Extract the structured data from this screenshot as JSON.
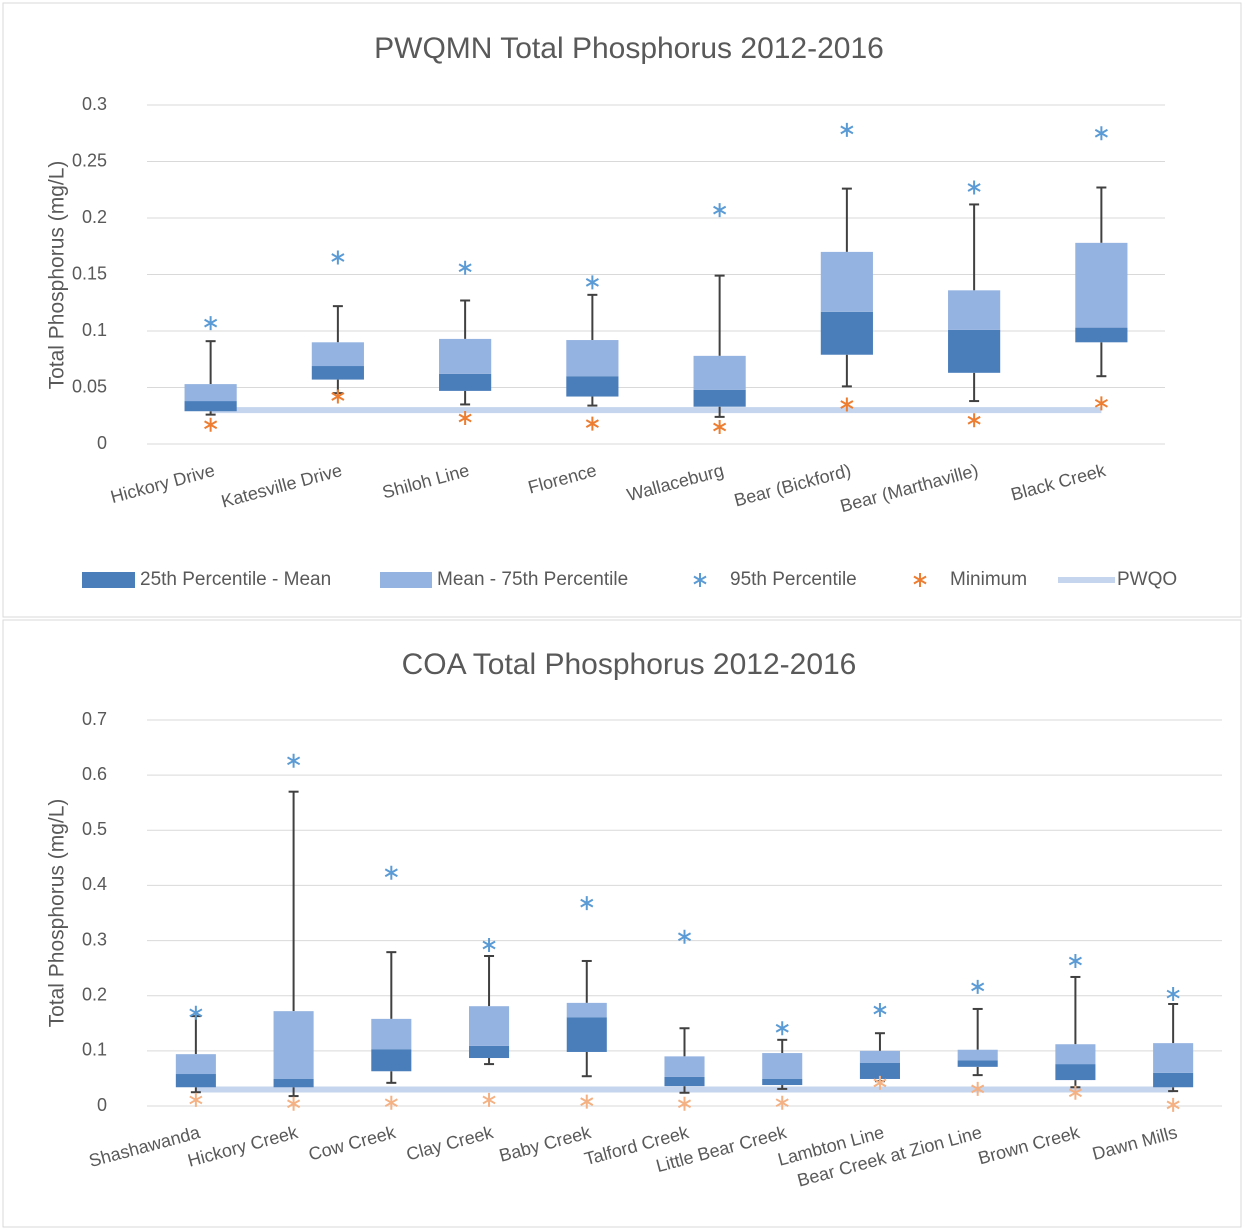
{
  "chart_data": [
    {
      "type": "box",
      "title": "PWQMN Total Phosphorus 2012-2016",
      "y_label": "Total Phosphorus (mg/L)",
      "categories": [
        "Hickory Drive",
        "Katesville Drive",
        "Shiloh Line",
        "Florence",
        "Wallaceburg",
        "Bear (Bickford)",
        "Bear (Marthaville)",
        "Black Creek"
      ],
      "p25": [
        0.029,
        0.057,
        0.047,
        0.042,
        0.033,
        0.079,
        0.063,
        0.09
      ],
      "mean": [
        0.038,
        0.069,
        0.062,
        0.06,
        0.048,
        0.117,
        0.101,
        0.103
      ],
      "p75": [
        0.053,
        0.09,
        0.093,
        0.092,
        0.078,
        0.17,
        0.136,
        0.178
      ],
      "whisker_low": [
        0.026,
        0.045,
        0.035,
        0.034,
        0.024,
        0.051,
        0.038,
        0.06
      ],
      "whisker_high": [
        0.091,
        0.122,
        0.127,
        0.132,
        0.149,
        0.226,
        0.212,
        0.227
      ],
      "series": [
        {
          "name": "25th Percentile - Mean",
          "color": "#4a7ebb"
        },
        {
          "name": "Mean - 75th Percentile",
          "color": "#95b3e0"
        },
        {
          "name": "95th Percentile",
          "color": "#5b9bd5",
          "values": [
            0.107,
            0.165,
            0.156,
            0.143,
            0.207,
            0.278,
            0.227,
            0.275
          ]
        },
        {
          "name": "Minimum",
          "color": "#ed7d31",
          "values": [
            0.017,
            0.042,
            0.023,
            0.018,
            0.015,
            0.035,
            0.021,
            0.036
          ]
        },
        {
          "name": "PWQO",
          "color": "#c5d5ee",
          "value": 0.03
        }
      ],
      "ylim": [
        0,
        0.3
      ],
      "yticks": [
        0,
        0.05,
        0.1,
        0.15,
        0.2,
        0.25,
        0.3
      ],
      "grid": true,
      "legend": "bottom"
    },
    {
      "type": "box",
      "title": "COA Total Phosphorus 2012-2016",
      "y_label": "Total Phosphorus (mg/L)",
      "categories": [
        "Shashawanda",
        "Hickory Creek",
        "Cow Creek",
        "Clay Creek",
        "Baby Creek",
        "Talford Creek",
        "Little Bear Creek",
        "Lambton Line",
        "Bear Creek at Zion Line",
        "Brown Creek",
        "Dawn Mills"
      ],
      "p25": [
        0.034,
        0.034,
        0.063,
        0.087,
        0.098,
        0.036,
        0.038,
        0.049,
        0.071,
        0.047,
        0.034
      ],
      "mean": [
        0.058,
        0.049,
        0.103,
        0.109,
        0.161,
        0.053,
        0.049,
        0.078,
        0.083,
        0.076,
        0.06
      ],
      "p75": [
        0.094,
        0.172,
        0.158,
        0.181,
        0.187,
        0.09,
        0.096,
        0.1,
        0.102,
        0.112,
        0.114
      ],
      "whisker_low": [
        0.025,
        0.018,
        0.042,
        0.076,
        0.054,
        0.024,
        0.031,
        0.045,
        0.056,
        0.034,
        0.027
      ],
      "whisker_high": [
        0.163,
        0.57,
        0.279,
        0.272,
        0.263,
        0.141,
        0.12,
        0.132,
        0.176,
        0.234,
        0.185
      ],
      "series": [
        {
          "color": "#4a7ebb"
        },
        {
          "color": "#95b3e0"
        },
        {
          "color": "#5b9bd5",
          "values": [
            0.169,
            0.626,
            0.423,
            0.292,
            0.368,
            0.307,
            0.141,
            0.174,
            0.216,
            0.263,
            0.203
          ]
        },
        {
          "color": "#f4b183",
          "values": [
            0.011,
            0.004,
            0.006,
            0.011,
            0.008,
            0.004,
            0.006,
            0.042,
            0.031,
            0.024,
            0.002
          ]
        },
        {
          "color": "#c5d5ee",
          "value": 0.03
        }
      ],
      "ylim": [
        0,
        0.7
      ],
      "yticks": [
        0,
        0.1,
        0.2,
        0.3,
        0.4,
        0.5,
        0.6,
        0.7
      ],
      "grid": true
    }
  ]
}
